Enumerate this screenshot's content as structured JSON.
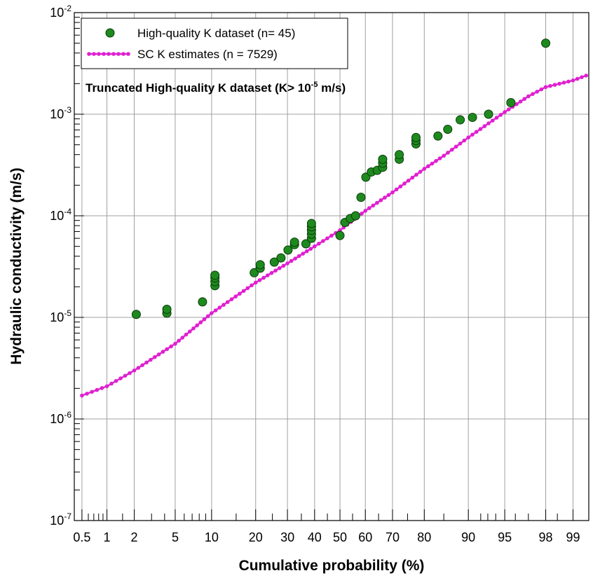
{
  "chart_data": {
    "type": "scatter",
    "title": "",
    "xlabel": "Cumulative probability (%)",
    "ylabel": "Hydraulic conductivity (m/s)",
    "x_scale": "normal-probability",
    "y_scale": "log",
    "xlim": [
      0.5,
      99
    ],
    "ylim": [
      1e-07,
      0.01
    ],
    "grid": true,
    "legend_position": "top-left",
    "x_ticks": [
      0.5,
      1,
      2,
      5,
      10,
      20,
      30,
      40,
      50,
      60,
      70,
      80,
      90,
      95,
      98,
      99
    ],
    "x_tick_labels": [
      "0.5",
      "1",
      "2",
      "5",
      "10",
      "20",
      "30",
      "40",
      "50",
      "60",
      "70",
      "80",
      "90",
      "95",
      "98",
      "99"
    ],
    "y_ticks": [
      {
        "base": "10",
        "exp": "-2",
        "value": 0.01
      },
      {
        "base": "10",
        "exp": "-3",
        "value": 0.001
      },
      {
        "base": "10",
        "exp": "-4",
        "value": 0.0001
      },
      {
        "base": "10",
        "exp": "-5",
        "value": 1e-05
      },
      {
        "base": "10",
        "exp": "-6",
        "value": 1e-06
      },
      {
        "base": "10",
        "exp": "-7",
        "value": 1e-07
      }
    ],
    "annotation": {
      "text_main": "Truncated High-quality K dataset (K> 10",
      "text_sup": "-5",
      "text_end": " m/s)"
    },
    "series": [
      {
        "name": "High-quality K dataset (n= 45)",
        "style": "markers",
        "color": "#1e8a1e",
        "edge_color": "#0a3a0a",
        "points": [
          [
            2.1,
            1.07e-05
          ],
          [
            4.2,
            1.1e-05
          ],
          [
            4.2,
            1.2e-05
          ],
          [
            8.5,
            1.42e-05
          ],
          [
            10.6,
            2.05e-05
          ],
          [
            10.6,
            2.25e-05
          ],
          [
            10.6,
            2.45e-05
          ],
          [
            10.6,
            2.6e-05
          ],
          [
            19.6,
            2.75e-05
          ],
          [
            21.3,
            3.05e-05
          ],
          [
            21.3,
            3.3e-05
          ],
          [
            25.6,
            3.5e-05
          ],
          [
            27.8,
            3.85e-05
          ],
          [
            30.2,
            4.6e-05
          ],
          [
            32.5,
            5.2e-05
          ],
          [
            32.5,
            5.5e-05
          ],
          [
            36.7,
            5.3e-05
          ],
          [
            38.8,
            6e-05
          ],
          [
            38.8,
            6.6e-05
          ],
          [
            38.8,
            7.2e-05
          ],
          [
            38.8,
            7.8e-05
          ],
          [
            38.8,
            8.4e-05
          ],
          [
            50.0,
            6.4e-05
          ],
          [
            52.0,
            8.6e-05
          ],
          [
            54.1,
            9.4e-05
          ],
          [
            56.2,
            0.0001
          ],
          [
            58.3,
            0.000152
          ],
          [
            60.2,
            0.00024
          ],
          [
            62.3,
            0.00027
          ],
          [
            64.5,
            0.00028
          ],
          [
            66.5,
            0.0003
          ],
          [
            66.5,
            0.00033
          ],
          [
            66.5,
            0.00036
          ],
          [
            72.3,
            0.00036
          ],
          [
            72.3,
            0.0004
          ],
          [
            77.6,
            0.00051
          ],
          [
            77.6,
            0.00055
          ],
          [
            77.6,
            0.00059
          ],
          [
            83.6,
            0.00061
          ],
          [
            85.9,
            0.00071
          ],
          [
            88.5,
            0.00088
          ],
          [
            90.7,
            0.00093
          ],
          [
            93.1,
            0.001
          ],
          [
            95.6,
            0.0013
          ],
          [
            98.0,
            0.005
          ]
        ]
      },
      {
        "name": "SC K estimates (n = 7529)",
        "style": "line-markers",
        "color": "#e020d0",
        "points": [
          [
            0.5,
            1.7e-06
          ],
          [
            1,
            2.1e-06
          ],
          [
            2,
            3e-06
          ],
          [
            5,
            5.5e-06
          ],
          [
            10,
            1.1e-05
          ],
          [
            20,
            2.2e-05
          ],
          [
            30,
            3.4e-05
          ],
          [
            40,
            5e-05
          ],
          [
            50,
            7.2e-05
          ],
          [
            60,
            0.000112
          ],
          [
            70,
            0.00017
          ],
          [
            80,
            0.00029
          ],
          [
            85,
            0.00039
          ],
          [
            90,
            0.00059
          ],
          [
            95,
            0.00105
          ],
          [
            97,
            0.0015
          ],
          [
            98,
            0.00185
          ],
          [
            99,
            0.00215
          ],
          [
            99.3,
            0.0024
          ]
        ]
      }
    ]
  }
}
